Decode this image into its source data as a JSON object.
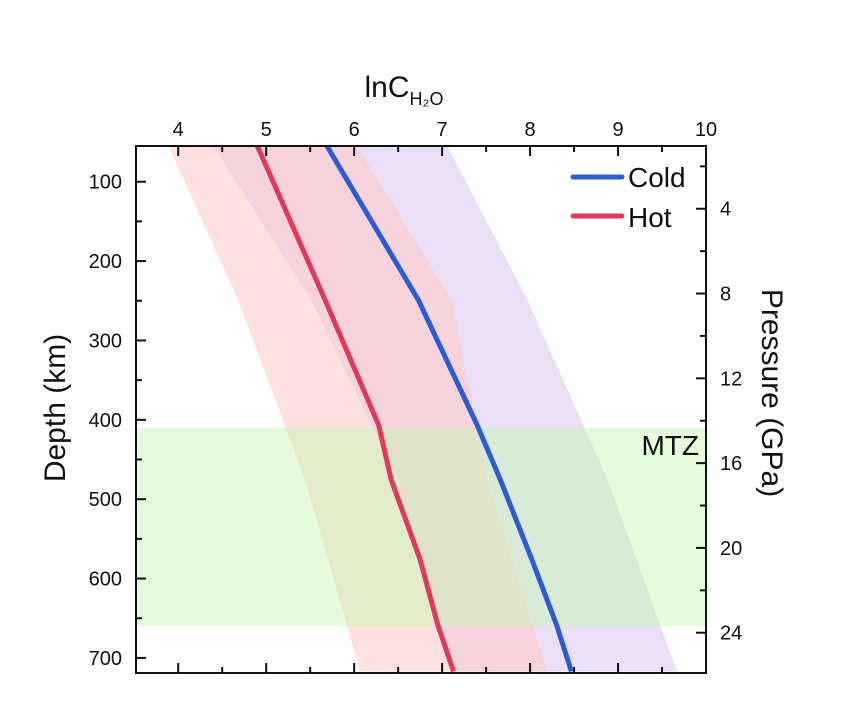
{
  "chart_data": {
    "type": "line",
    "title": "",
    "xlabel": {
      "main": "lnC",
      "subscript": "H₂O"
    },
    "ylabel_left": "Depth (km)",
    "ylabel_right": "Pressure (GPa)",
    "xlim": [
      3.52,
      10
    ],
    "ylim_depth": [
      55,
      719
    ],
    "ylim_pressure": [
      1.04,
      25.9
    ],
    "x_ticks": [
      "4",
      "5",
      "6",
      "7",
      "8",
      "9",
      "10"
    ],
    "x_tick_values": [
      4,
      5,
      6,
      7,
      8,
      9,
      10
    ],
    "x_minor_ticks": [
      4.5,
      5.5,
      6.5,
      7.5,
      8.5,
      9.5
    ],
    "depth_ticks": [
      "100",
      "200",
      "300",
      "400",
      "500",
      "600",
      "700"
    ],
    "depth_tick_values": [
      100,
      200,
      300,
      400,
      500,
      600,
      700
    ],
    "depth_minor_ticks": [
      150,
      250,
      350,
      450,
      550,
      650
    ],
    "pressure_ticks": [
      "4",
      "8",
      "12",
      "16",
      "20",
      "24"
    ],
    "pressure_tick_values": [
      4,
      8,
      12,
      16,
      20,
      24
    ],
    "pressure_minor_ticks": [
      2,
      6,
      10,
      14,
      18,
      22
    ],
    "grid": false,
    "legend": {
      "position": "top-right",
      "entries": [
        "Cold",
        "Hot"
      ]
    },
    "series": [
      {
        "name": "Cold",
        "color": "#2b5bd7",
        "depth": [
          55,
          249,
          407,
          475,
          576,
          658,
          717
        ],
        "values": [
          5.69,
          6.73,
          7.4,
          7.66,
          8.02,
          8.3,
          8.47
        ],
        "band": {
          "color": "#d9c4f0",
          "depth": [
            55,
            249,
            475,
            717
          ],
          "lower": [
            4.4,
            5.51,
            6.5,
            7.15
          ],
          "upper": [
            7.06,
            7.97,
            8.88,
            9.67
          ]
        }
      },
      {
        "name": "Hot",
        "color": "#e0395a",
        "depth": [
          55,
          249,
          407,
          475,
          576,
          658,
          717
        ],
        "values": [
          4.9,
          5.67,
          6.28,
          6.42,
          6.75,
          6.95,
          7.13
        ],
        "band": {
          "color": "#ffc9c4",
          "depth": [
            55,
            249,
            475,
            717
          ],
          "lower": [
            3.89,
            4.68,
            5.44,
            6.07
          ],
          "upper": [
            6.03,
            7.11,
            7.51,
            8.19
          ]
        }
      }
    ],
    "annotations": [
      {
        "text": "MTZ",
        "depth_range": [
          410,
          660
        ],
        "color": "#c8f5b8"
      }
    ]
  }
}
